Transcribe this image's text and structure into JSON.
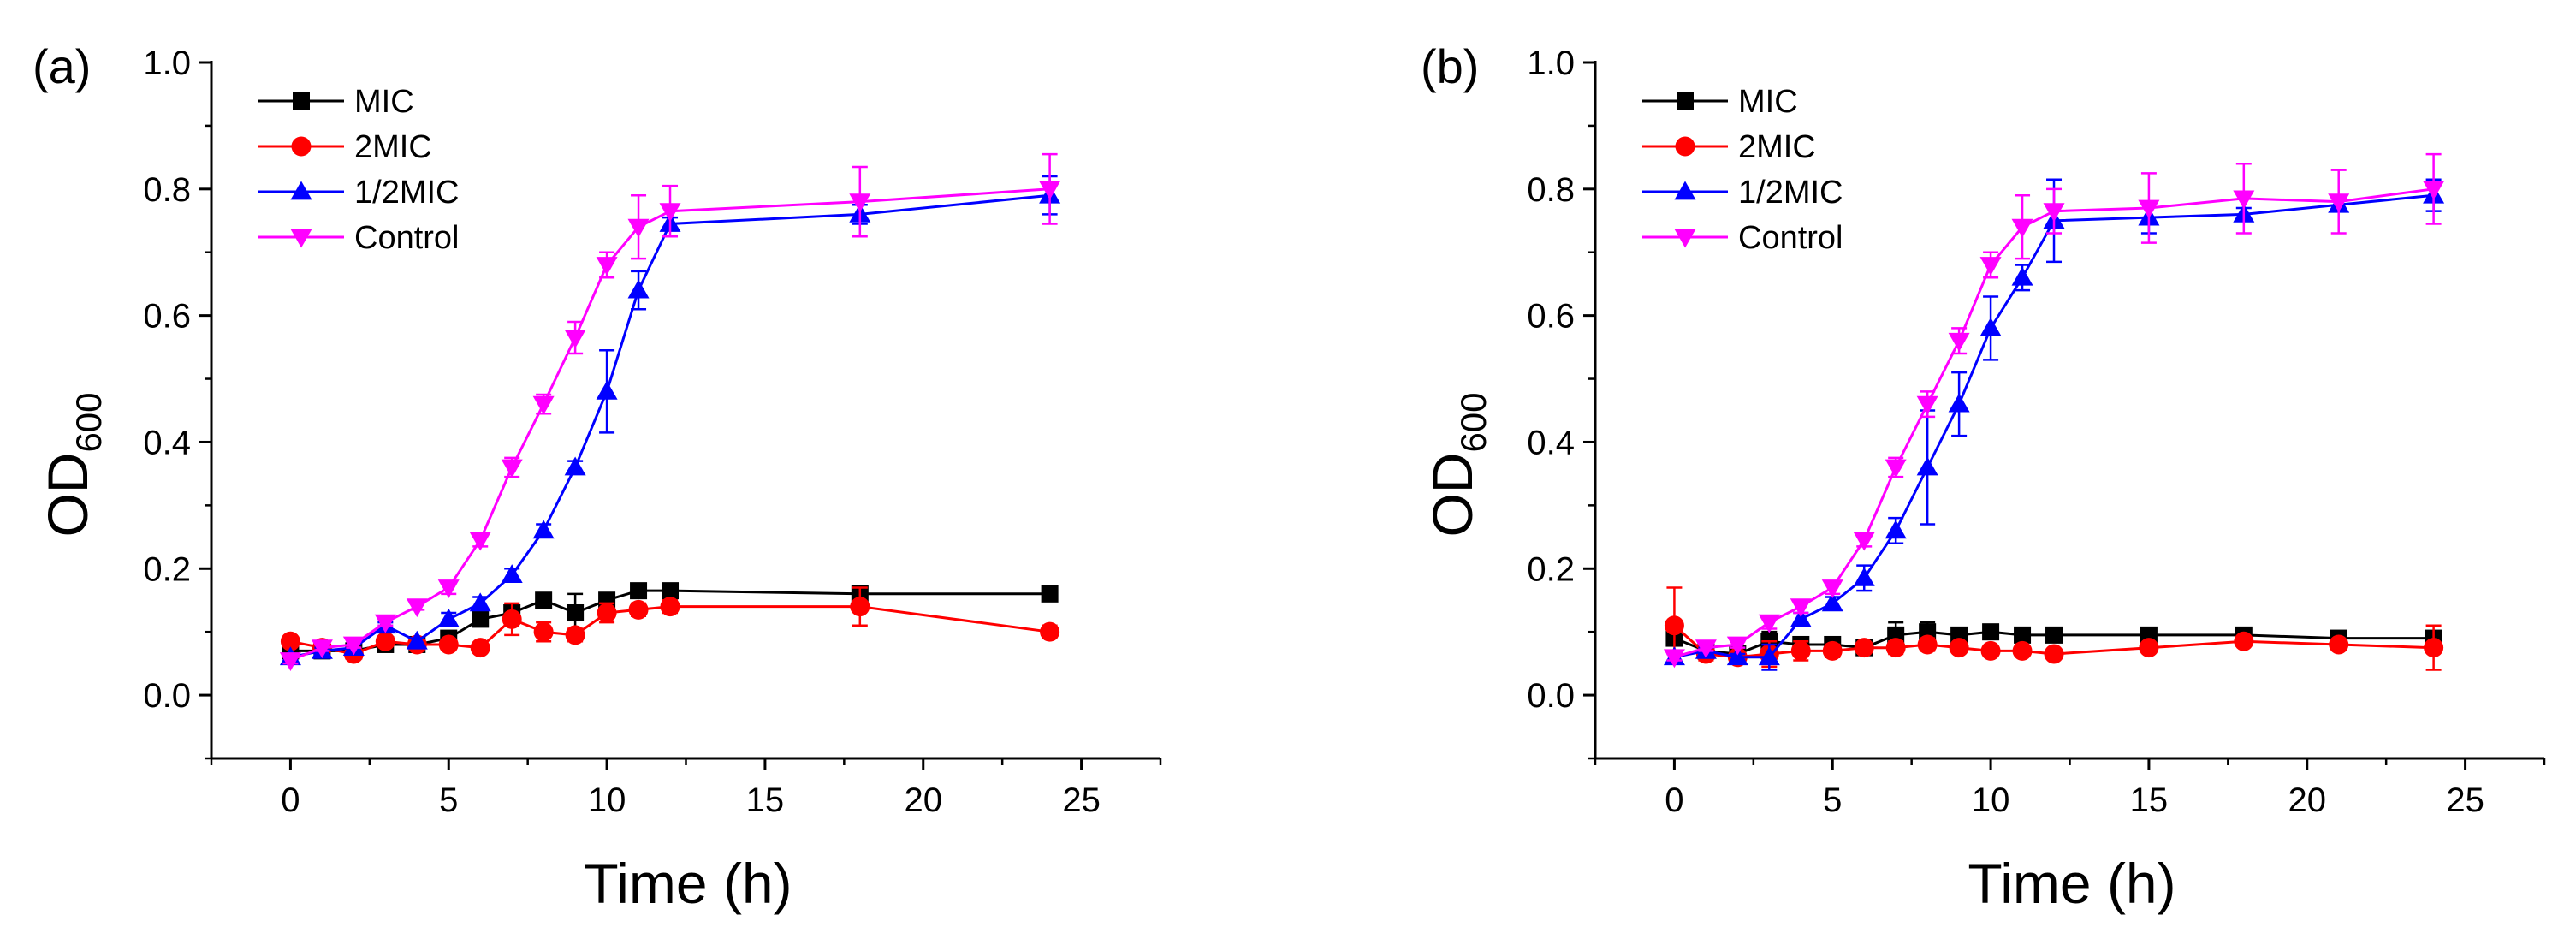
{
  "chart_data": [
    {
      "type": "line",
      "panel_label": "(a)",
      "xlabel": "Time (h)",
      "ylabel_main": "OD",
      "ylabel_sub": "600",
      "xlim": [
        -2.5,
        27.5
      ],
      "ylim": [
        -0.1,
        1.0
      ],
      "xticks": [
        0,
        5,
        10,
        15,
        20,
        25
      ],
      "yticks": [
        0.0,
        0.2,
        0.4,
        0.6,
        0.8,
        1.0
      ],
      "ytick_labels": [
        "0.0",
        "0.2",
        "0.4",
        "0.6",
        "0.8",
        "1.0"
      ],
      "grid": false,
      "legend_position": "top-left",
      "series": [
        {
          "name": "MIC",
          "color": "#000000",
          "marker": "square",
          "x": [
            0,
            1,
            2,
            3,
            4,
            5,
            6,
            7,
            8,
            9,
            10,
            11,
            12,
            18,
            24
          ],
          "y": [
            0.07,
            0.07,
            0.07,
            0.08,
            0.08,
            0.09,
            0.12,
            0.13,
            0.15,
            0.13,
            0.15,
            0.165,
            0.165,
            0.16,
            0.16
          ],
          "err": [
            0.005,
            0.005,
            0.005,
            0.005,
            0.005,
            0.005,
            0.01,
            0.01,
            0.01,
            0.03,
            0.01,
            0.01,
            0.005,
            0.005,
            0.005
          ]
        },
        {
          "name": "2MIC",
          "color": "#ff0000",
          "marker": "circle",
          "x": [
            0,
            1,
            2,
            3,
            4,
            5,
            6,
            7,
            8,
            9,
            10,
            11,
            12,
            18,
            24
          ],
          "y": [
            0.085,
            0.075,
            0.065,
            0.085,
            0.08,
            0.08,
            0.075,
            0.12,
            0.1,
            0.095,
            0.13,
            0.135,
            0.14,
            0.14,
            0.1
          ],
          "err": [
            0.005,
            0.005,
            0.005,
            0.005,
            0.005,
            0.005,
            0.005,
            0.025,
            0.015,
            0.01,
            0.015,
            0.01,
            0.01,
            0.03,
            0.01
          ]
        },
        {
          "name": "1/2MIC",
          "color": "#0000ff",
          "marker": "triangle-up",
          "x": [
            0,
            1,
            2,
            3,
            4,
            5,
            6,
            7,
            8,
            9,
            10,
            11,
            12,
            18,
            24
          ],
          "y": [
            0.06,
            0.07,
            0.075,
            0.11,
            0.085,
            0.12,
            0.145,
            0.19,
            0.26,
            0.36,
            0.48,
            0.64,
            0.745,
            0.76,
            0.79
          ],
          "err": [
            0.005,
            0.005,
            0.005,
            0.005,
            0.005,
            0.01,
            0.01,
            0.01,
            0.01,
            0.01,
            0.065,
            0.03,
            0.01,
            0.015,
            0.03
          ]
        },
        {
          "name": "Control",
          "color": "#ff00ff",
          "marker": "triangle-down",
          "x": [
            0,
            1,
            2,
            3,
            4,
            5,
            6,
            7,
            8,
            9,
            10,
            11,
            12,
            18,
            24
          ],
          "y": [
            0.055,
            0.075,
            0.08,
            0.115,
            0.14,
            0.17,
            0.245,
            0.36,
            0.46,
            0.565,
            0.68,
            0.74,
            0.765,
            0.78,
            0.8
          ],
          "err": [
            0.005,
            0.005,
            0.005,
            0.005,
            0.005,
            0.01,
            0.01,
            0.015,
            0.015,
            0.025,
            0.02,
            0.05,
            0.04,
            0.055,
            0.055
          ]
        }
      ]
    },
    {
      "type": "line",
      "panel_label": "(b)",
      "xlabel": "Time (h)",
      "ylabel_main": "OD",
      "ylabel_sub": "600",
      "xlim": [
        -2.5,
        27.5
      ],
      "ylim": [
        -0.1,
        1.0
      ],
      "xticks": [
        0,
        5,
        10,
        15,
        20,
        25
      ],
      "yticks": [
        0.0,
        0.2,
        0.4,
        0.6,
        0.8,
        1.0
      ],
      "ytick_labels": [
        "0.0",
        "0.2",
        "0.4",
        "0.6",
        "0.8",
        "1.0"
      ],
      "grid": false,
      "legend_position": "top-left",
      "series": [
        {
          "name": "MIC",
          "color": "#000000",
          "marker": "square",
          "x": [
            0,
            1,
            2,
            3,
            4,
            5,
            6,
            7,
            8,
            9,
            10,
            11,
            12,
            15,
            18,
            21,
            24
          ],
          "y": [
            0.09,
            0.07,
            0.065,
            0.085,
            0.08,
            0.08,
            0.075,
            0.095,
            0.1,
            0.095,
            0.1,
            0.095,
            0.095,
            0.095,
            0.095,
            0.09,
            0.09
          ],
          "err": [
            0.01,
            0.01,
            0.005,
            0.015,
            0.01,
            0.005,
            0.005,
            0.02,
            0.015,
            0.01,
            0.005,
            0.005,
            0.005,
            0.005,
            0.005,
            0.005,
            0.01
          ]
        },
        {
          "name": "2MIC",
          "color": "#ff0000",
          "marker": "circle",
          "x": [
            0,
            1,
            2,
            3,
            4,
            5,
            6,
            7,
            8,
            9,
            10,
            11,
            12,
            15,
            18,
            21,
            24
          ],
          "y": [
            0.11,
            0.065,
            0.06,
            0.065,
            0.07,
            0.07,
            0.075,
            0.075,
            0.08,
            0.075,
            0.07,
            0.07,
            0.065,
            0.075,
            0.085,
            0.08,
            0.075
          ],
          "err": [
            0.06,
            0.01,
            0.005,
            0.02,
            0.015,
            0.01,
            0.005,
            0.01,
            0.01,
            0.005,
            0.005,
            0.005,
            0.005,
            0.005,
            0.005,
            0.005,
            0.035
          ]
        },
        {
          "name": "1/2MIC",
          "color": "#0000ff",
          "marker": "triangle-up",
          "x": [
            0,
            1,
            2,
            3,
            4,
            5,
            6,
            7,
            8,
            9,
            10,
            11,
            12,
            15,
            18,
            21,
            24
          ],
          "y": [
            0.06,
            0.07,
            0.06,
            0.06,
            0.12,
            0.145,
            0.185,
            0.26,
            0.36,
            0.46,
            0.58,
            0.66,
            0.75,
            0.755,
            0.76,
            0.775,
            0.79
          ],
          "err": [
            0.005,
            0.005,
            0.005,
            0.02,
            0.01,
            0.01,
            0.02,
            0.02,
            0.09,
            0.05,
            0.05,
            0.02,
            0.065,
            0.025,
            0.01,
            0.01,
            0.025
          ]
        },
        {
          "name": "Control",
          "color": "#ff00ff",
          "marker": "triangle-down",
          "x": [
            0,
            1,
            2,
            3,
            4,
            5,
            6,
            7,
            8,
            9,
            10,
            11,
            12,
            15,
            18,
            21,
            24
          ],
          "y": [
            0.06,
            0.075,
            0.08,
            0.115,
            0.14,
            0.17,
            0.245,
            0.36,
            0.46,
            0.56,
            0.68,
            0.74,
            0.765,
            0.77,
            0.785,
            0.78,
            0.8
          ],
          "err": [
            0.005,
            0.005,
            0.005,
            0.01,
            0.01,
            0.01,
            0.01,
            0.015,
            0.02,
            0.02,
            0.02,
            0.05,
            0.035,
            0.055,
            0.055,
            0.05,
            0.055
          ]
        }
      ]
    }
  ]
}
